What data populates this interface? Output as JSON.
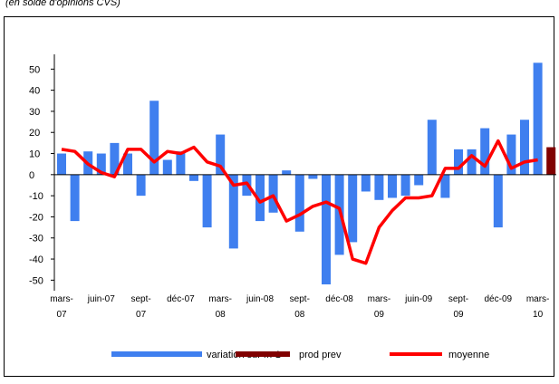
{
  "chart_data": {
    "type": "bar",
    "subtitle": "(en solde d'opinions CVS)",
    "categories": [
      "mars-\n07",
      null,
      null,
      "juin-07",
      null,
      null,
      "sept-\n07",
      null,
      null,
      "déc-07",
      null,
      null,
      "mars-\n08",
      null,
      null,
      "juin-08",
      null,
      null,
      "sept-\n08",
      null,
      null,
      "déc-08",
      null,
      null,
      "mars-\n09",
      null,
      null,
      "juin-09",
      null,
      null,
      "sept-\n09",
      null,
      null,
      "déc-09",
      null,
      null,
      "mars-\n10",
      null
    ],
    "series": [
      {
        "name": "variation sur m-1",
        "type": "bar",
        "color": "#3f7fef",
        "values": [
          10,
          -22,
          11,
          10,
          15,
          10,
          -10,
          35,
          7,
          11,
          -3,
          -25,
          19,
          -35,
          -10,
          -22,
          -18,
          2,
          -27,
          -2,
          -52,
          -38,
          -32,
          -8,
          -12,
          -11,
          -10,
          -5,
          26,
          -11,
          12,
          12,
          22,
          -25,
          19,
          26,
          53,
          null
        ]
      },
      {
        "name": "prod prev",
        "type": "bar",
        "color": "#800000",
        "values": [
          null,
          null,
          null,
          null,
          null,
          null,
          null,
          null,
          null,
          null,
          null,
          null,
          null,
          null,
          null,
          null,
          null,
          null,
          null,
          null,
          null,
          null,
          null,
          null,
          null,
          null,
          null,
          null,
          null,
          null,
          null,
          null,
          null,
          null,
          null,
          null,
          null,
          13
        ]
      },
      {
        "name": "moyenne",
        "type": "line",
        "color": "#ff0000",
        "values": [
          12,
          11,
          5,
          1,
          -1,
          12,
          12,
          6,
          11,
          10,
          13,
          6,
          4,
          -5,
          -4,
          -13,
          -10,
          -22,
          -19,
          -15,
          -13,
          -16,
          -40,
          -42,
          -25,
          -17,
          -11,
          -11,
          -10,
          3,
          3,
          9,
          4,
          16,
          3,
          6,
          7,
          null
        ]
      }
    ],
    "ylim": [
      -55,
      57
    ],
    "yticks": [
      50,
      40,
      30,
      20,
      10,
      0,
      -10,
      -20,
      -30,
      -40,
      -50
    ],
    "legend": "bottom"
  }
}
